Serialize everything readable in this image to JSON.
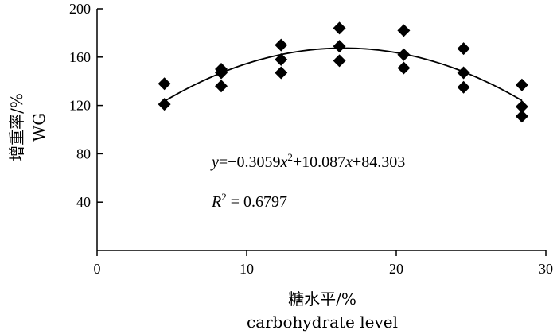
{
  "chart_data": {
    "type": "scatter",
    "xlabel": "糖水平/%",
    "xlabel_en": "carbohydrate level",
    "ylabel": "增重率/%",
    "ylabel_en": "WG",
    "xlim": [
      0,
      30
    ],
    "ylim": [
      0,
      200
    ],
    "x_ticks": [
      0,
      10,
      20,
      30
    ],
    "y_ticks": [
      40,
      80,
      120,
      160,
      200
    ],
    "grid": false,
    "marker": "diamond",
    "marker_color": "#000000",
    "points": [
      {
        "x": 4.5,
        "y": 138
      },
      {
        "x": 4.5,
        "y": 121
      },
      {
        "x": 8.3,
        "y": 150
      },
      {
        "x": 8.3,
        "y": 147
      },
      {
        "x": 8.3,
        "y": 136
      },
      {
        "x": 12.3,
        "y": 170
      },
      {
        "x": 12.3,
        "y": 158
      },
      {
        "x": 12.3,
        "y": 147
      },
      {
        "x": 16.2,
        "y": 184
      },
      {
        "x": 16.2,
        "y": 169
      },
      {
        "x": 16.2,
        "y": 157
      },
      {
        "x": 20.5,
        "y": 182
      },
      {
        "x": 20.5,
        "y": 162
      },
      {
        "x": 20.5,
        "y": 151
      },
      {
        "x": 24.5,
        "y": 167
      },
      {
        "x": 24.5,
        "y": 147
      },
      {
        "x": 24.5,
        "y": 135
      },
      {
        "x": 28.4,
        "y": 137
      },
      {
        "x": 28.4,
        "y": 119
      },
      {
        "x": 28.4,
        "y": 111
      }
    ],
    "trendline": {
      "type": "polynomial",
      "a": -0.3059,
      "b": 10.087,
      "c": 84.303,
      "x_range": [
        4.5,
        28.4
      ]
    },
    "equation": {
      "y": "y",
      "eq1": "=−0.3059",
      "x1": "x",
      "sup1": "2",
      "eq2": "+10.087",
      "x2": "x",
      "eq3": "+84.303",
      "R": "R",
      "sup2": "2",
      "r_val": " = 0.6797"
    }
  }
}
